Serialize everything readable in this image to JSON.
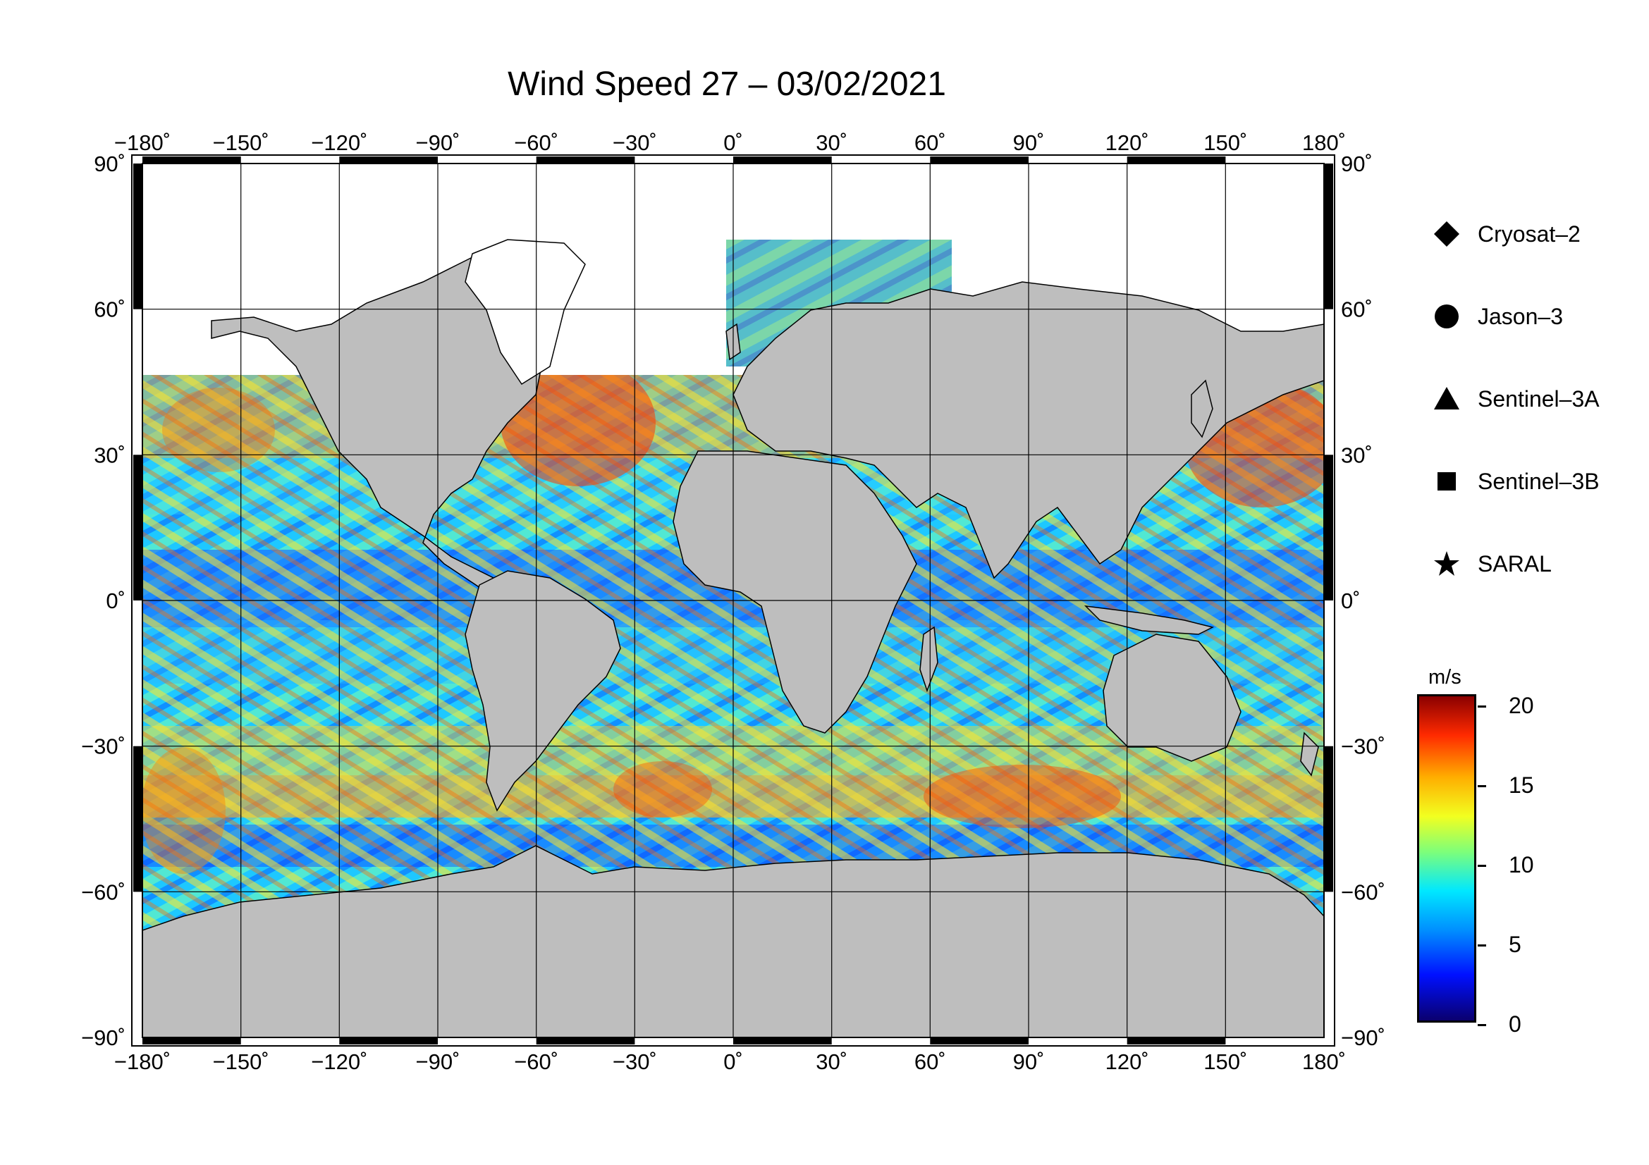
{
  "title": "Wind Speed 27 – 03/02/2021",
  "map": {
    "lon_ticks": [
      "−180˚",
      "−150˚",
      "−120˚",
      "−90˚",
      "−60˚",
      "−30˚",
      "0˚",
      "30˚",
      "60˚",
      "90˚",
      "120˚",
      "150˚",
      "180˚"
    ],
    "lat_ticks": [
      "90˚",
      "60˚",
      "30˚",
      "0˚",
      "−30˚",
      "−60˚",
      "−90˚"
    ],
    "lon_values": [
      -180,
      -150,
      -120,
      -90,
      -60,
      -30,
      0,
      30,
      60,
      90,
      120,
      150,
      180
    ],
    "lat_values": [
      90,
      60,
      30,
      0,
      -30,
      -60,
      -90
    ],
    "land_color": "#bebebe",
    "ice_color": "#ffffff"
  },
  "legend": {
    "items": [
      {
        "label": "Cryosat–2",
        "symbol": "diamond-icon"
      },
      {
        "label": "Jason–3",
        "symbol": "circle-icon"
      },
      {
        "label": "Sentinel–3A",
        "symbol": "triangle-icon"
      },
      {
        "label": "Sentinel–3B",
        "symbol": "square-icon"
      },
      {
        "label": "SARAL",
        "symbol": "star-icon"
      }
    ]
  },
  "colorbar": {
    "unit": "m/s",
    "ticks": [
      "20",
      "15",
      "10",
      "5",
      "0"
    ],
    "tick_values": [
      20,
      15,
      10,
      5,
      0
    ],
    "min": 0,
    "max": 20,
    "colors": [
      "#0a006e",
      "#0010ff",
      "#0090ff",
      "#00e8ff",
      "#7dff7a",
      "#f2ff20",
      "#ffae00",
      "#ff2a00",
      "#8a0000"
    ]
  }
}
